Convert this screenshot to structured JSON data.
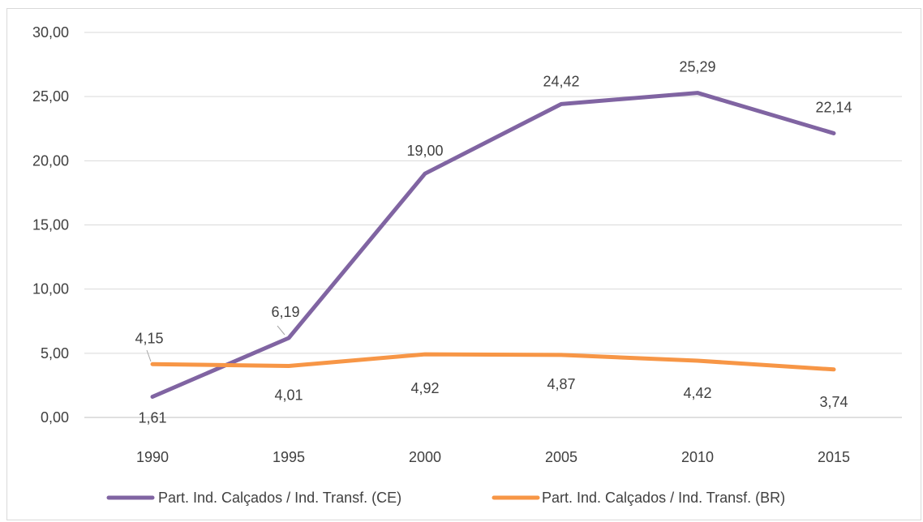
{
  "chart_data": {
    "type": "line",
    "title": "",
    "xlabel": "",
    "ylabel": "",
    "categories": [
      "1990",
      "1995",
      "2000",
      "2005",
      "2010",
      "2015"
    ],
    "ylim": [
      0,
      30
    ],
    "y_ticks": [
      "0,00",
      "5,00",
      "10,00",
      "15,00",
      "20,00",
      "25,00",
      "30,00"
    ],
    "grid": true,
    "legend_position": "bottom",
    "series": [
      {
        "name": "Part. Ind. Calçados / Ind. Transf. (CE)",
        "color": "#8064a2",
        "values": [
          1.61,
          6.19,
          19.0,
          24.42,
          25.29,
          22.14
        ],
        "labels": [
          "1,61",
          "6,19",
          "19,00",
          "24,42",
          "25,29",
          "22,14"
        ]
      },
      {
        "name": "Part. Ind. Calçados / Ind. Transf. (BR)",
        "color": "#f79646",
        "values": [
          4.15,
          4.01,
          4.92,
          4.87,
          4.42,
          3.74
        ],
        "labels": [
          "4,15",
          "4,01",
          "4,92",
          "4,87",
          "4,42",
          "3,74"
        ]
      }
    ]
  }
}
